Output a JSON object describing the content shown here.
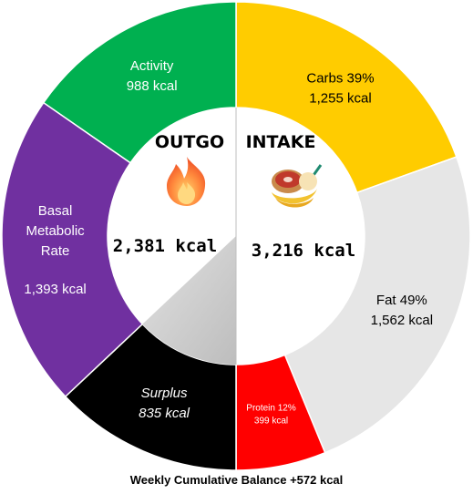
{
  "chart_data": {
    "type": "pie",
    "subtype": "donut",
    "title": "Weekly Cumulative Balance +572 kcal",
    "left_half": {
      "heading": "OUTGO",
      "total_label": "2,381 kcal",
      "icon": "fire-icon",
      "segments": [
        {
          "name": "Activity",
          "value": 988,
          "value_label": "988 kcal",
          "color": "#00b050",
          "text_color": "#ffffff"
        },
        {
          "name": "Basal Metabolic Rate",
          "name_lines": [
            "Basal",
            "Metabolic",
            "Rate"
          ],
          "value": 1393,
          "value_label": "1,393 kcal",
          "color": "#7030a0",
          "text_color": "#ffffff"
        },
        {
          "name": "Surplus",
          "value": 835,
          "value_label": "835 kcal",
          "color": "#000000",
          "text_color": "#ffffff",
          "italic": true
        }
      ]
    },
    "right_half": {
      "heading": "INTAKE",
      "total_label": "3,216 kcal",
      "icon": "food-icon",
      "segments": [
        {
          "name": "Carbs 39%",
          "value": 1255,
          "value_label": "1,255 kcal",
          "color": "#ffcc00",
          "text_color": "#000000"
        },
        {
          "name": "Fat 49%",
          "value": 1562,
          "value_label": "1,562 kcal",
          "color": "#e6e6e6",
          "text_color": "#000000"
        },
        {
          "name": "Protein 12%",
          "value": 399,
          "value_label": "399 kcal",
          "color": "#ff0000",
          "text_color": "#ffffff",
          "small": true
        }
      ]
    }
  }
}
